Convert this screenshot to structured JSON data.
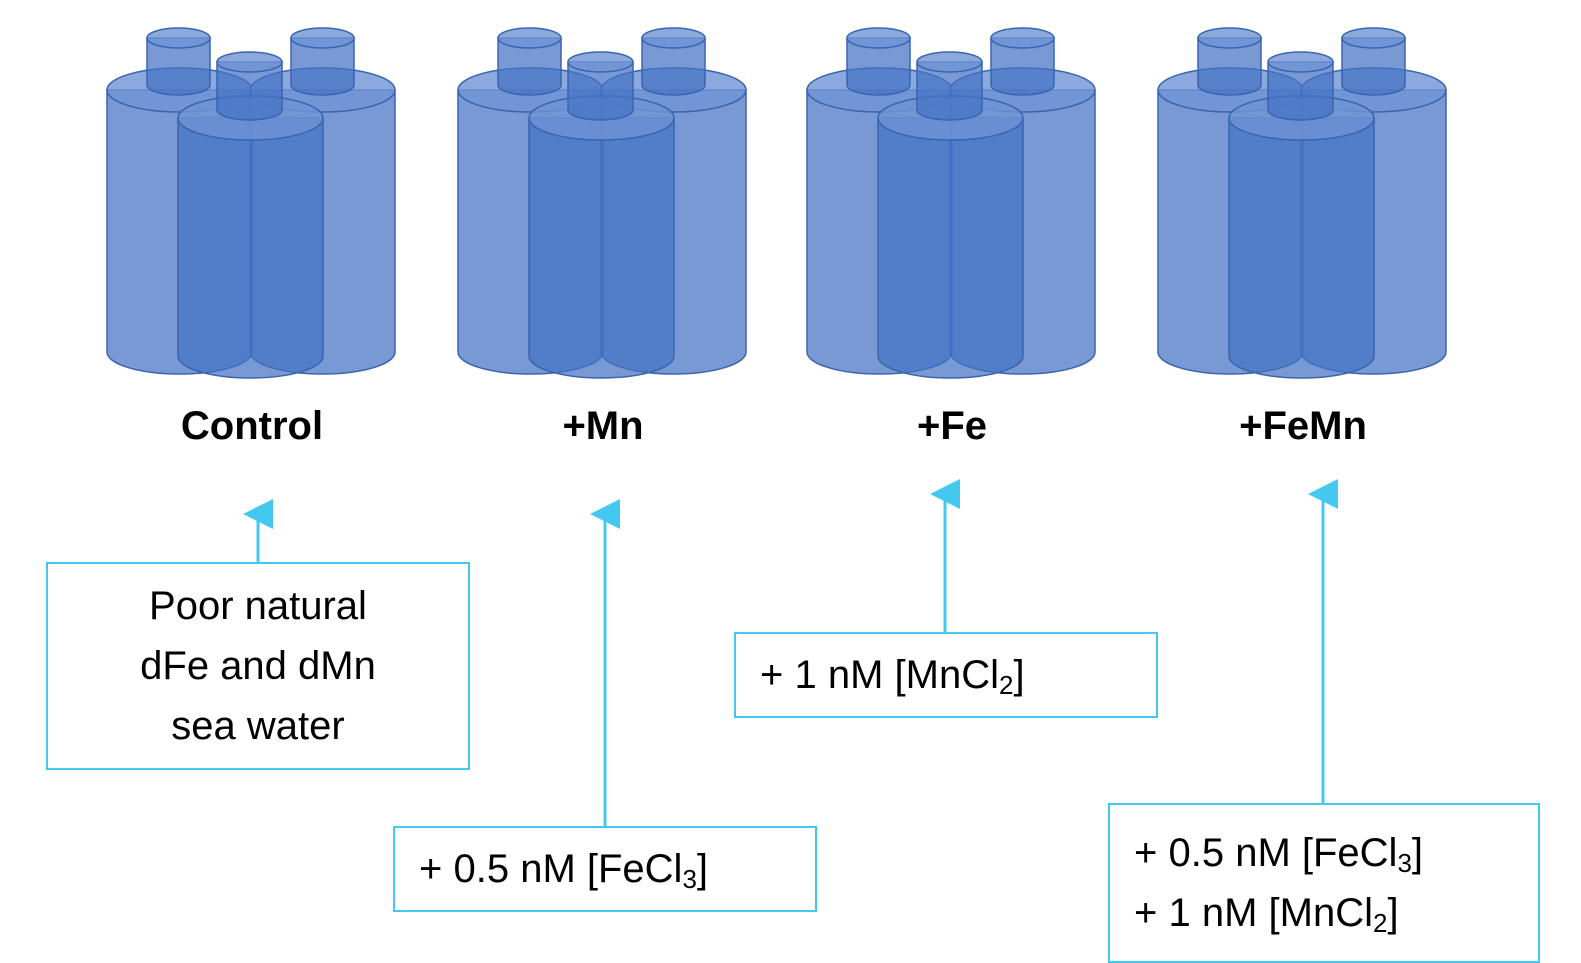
{
  "groups": [
    {
      "label": "Control",
      "note": [
        {
          "pre": "Poor natural"
        },
        {
          "pre": "dFe and dMn"
        },
        {
          "pre": "sea water"
        }
      ]
    },
    {
      "label": "+Mn",
      "note": [
        {
          "pre": "+ 0.5 nM [FeCl",
          "sub": "3",
          "post": "]"
        }
      ]
    },
    {
      "label": "+Fe",
      "note": [
        {
          "pre": "+ 1 nM [MnCl",
          "sub": "2",
          "post": "]"
        }
      ]
    },
    {
      "label": "+FeMn",
      "note": [
        {
          "pre": "+ 0.5 nM [FeCl",
          "sub": "3",
          "post": "]"
        },
        {
          "pre": "+ 1 nM [MnCl",
          "sub": "2",
          "post": "]"
        }
      ]
    }
  ]
}
